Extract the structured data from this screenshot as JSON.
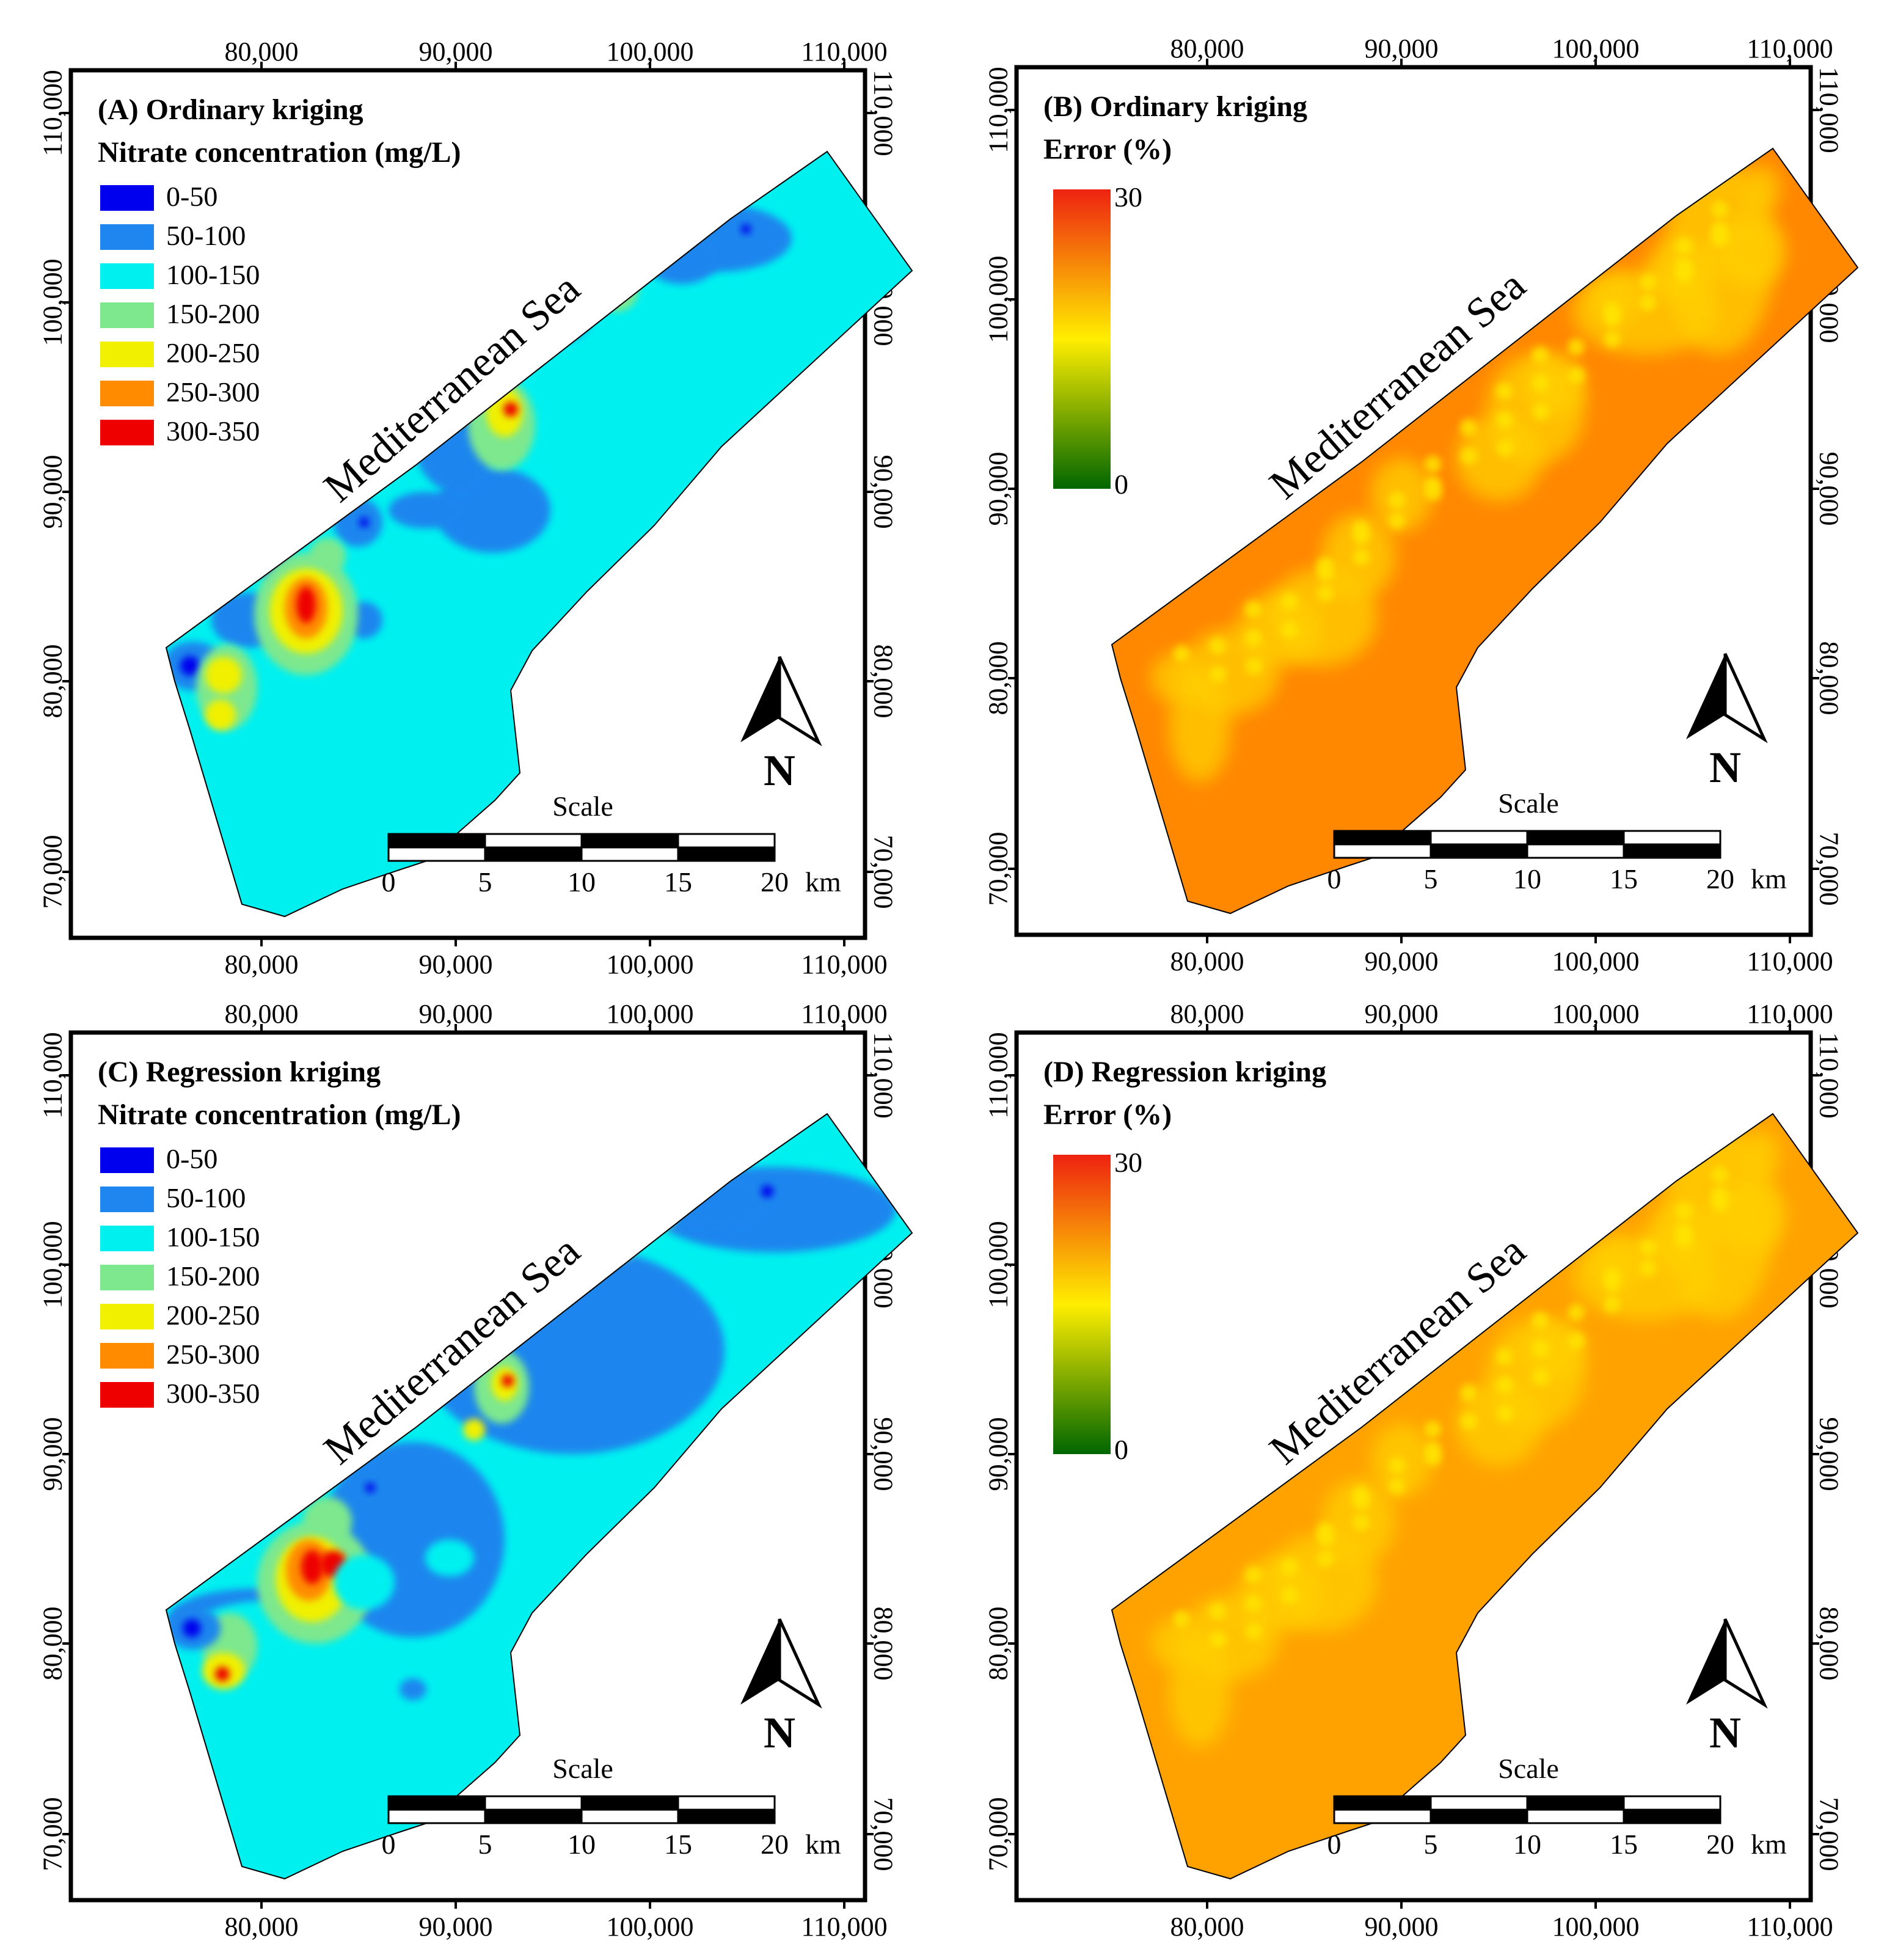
{
  "figure": {
    "panels": [
      {
        "id": "A",
        "type": "concentration",
        "title": "(A) Ordinary kriging",
        "legend_title": "Nitrate concentration (mg/L)",
        "classes": [
          {
            "label": "0-50",
            "color": "#0000ee"
          },
          {
            "label": "50-100",
            "color": "#1e86ee"
          },
          {
            "label": "100-150",
            "color": "#00f0f0"
          },
          {
            "label": "150-200",
            "color": "#7de88e"
          },
          {
            "label": "200-250",
            "color": "#f0f000"
          },
          {
            "label": "250-300",
            "color": "#ff8c00"
          },
          {
            "label": "300-350",
            "color": "#ee0000"
          }
        ],
        "base_color": "#00f0f0"
      },
      {
        "id": "B",
        "type": "error",
        "title": "(B) Ordinary kriging",
        "legend_title": "Error (%)",
        "scale_max": "30",
        "scale_min": "0",
        "base_color": "#ff8800"
      },
      {
        "id": "C",
        "type": "concentration",
        "title": "(C) Regression kriging",
        "legend_title": "Nitrate concentration (mg/L)",
        "classes": [
          {
            "label": "0-50",
            "color": "#0000ee"
          },
          {
            "label": "50-100",
            "color": "#1e86ee"
          },
          {
            "label": "100-150",
            "color": "#00f0f0"
          },
          {
            "label": "150-200",
            "color": "#7de88e"
          },
          {
            "label": "200-250",
            "color": "#f0f000"
          },
          {
            "label": "250-300",
            "color": "#ff8c00"
          },
          {
            "label": "300-350",
            "color": "#ee0000"
          }
        ],
        "base_color": "#00f0f0"
      },
      {
        "id": "D",
        "type": "error",
        "title": "(D) Regression kriging",
        "legend_title": "Error (%)",
        "scale_max": "30",
        "scale_min": "0",
        "base_color": "#ffa200"
      }
    ],
    "x_ticks": [
      "80,000",
      "90,000",
      "100,000",
      "110,000"
    ],
    "y_ticks": [
      "70,000",
      "80,000",
      "90,000",
      "100,000",
      "110,000"
    ],
    "sea_label": "Mediterranean Sea",
    "north_label": "N",
    "scale_bar": {
      "title": "Scale",
      "ticks": [
        "0",
        "5",
        "10",
        "15",
        "20"
      ],
      "unit": "km"
    },
    "error_ramp": {
      "top": "#ee2211",
      "mid": "#ffee00",
      "bottom": "#006600"
    }
  }
}
